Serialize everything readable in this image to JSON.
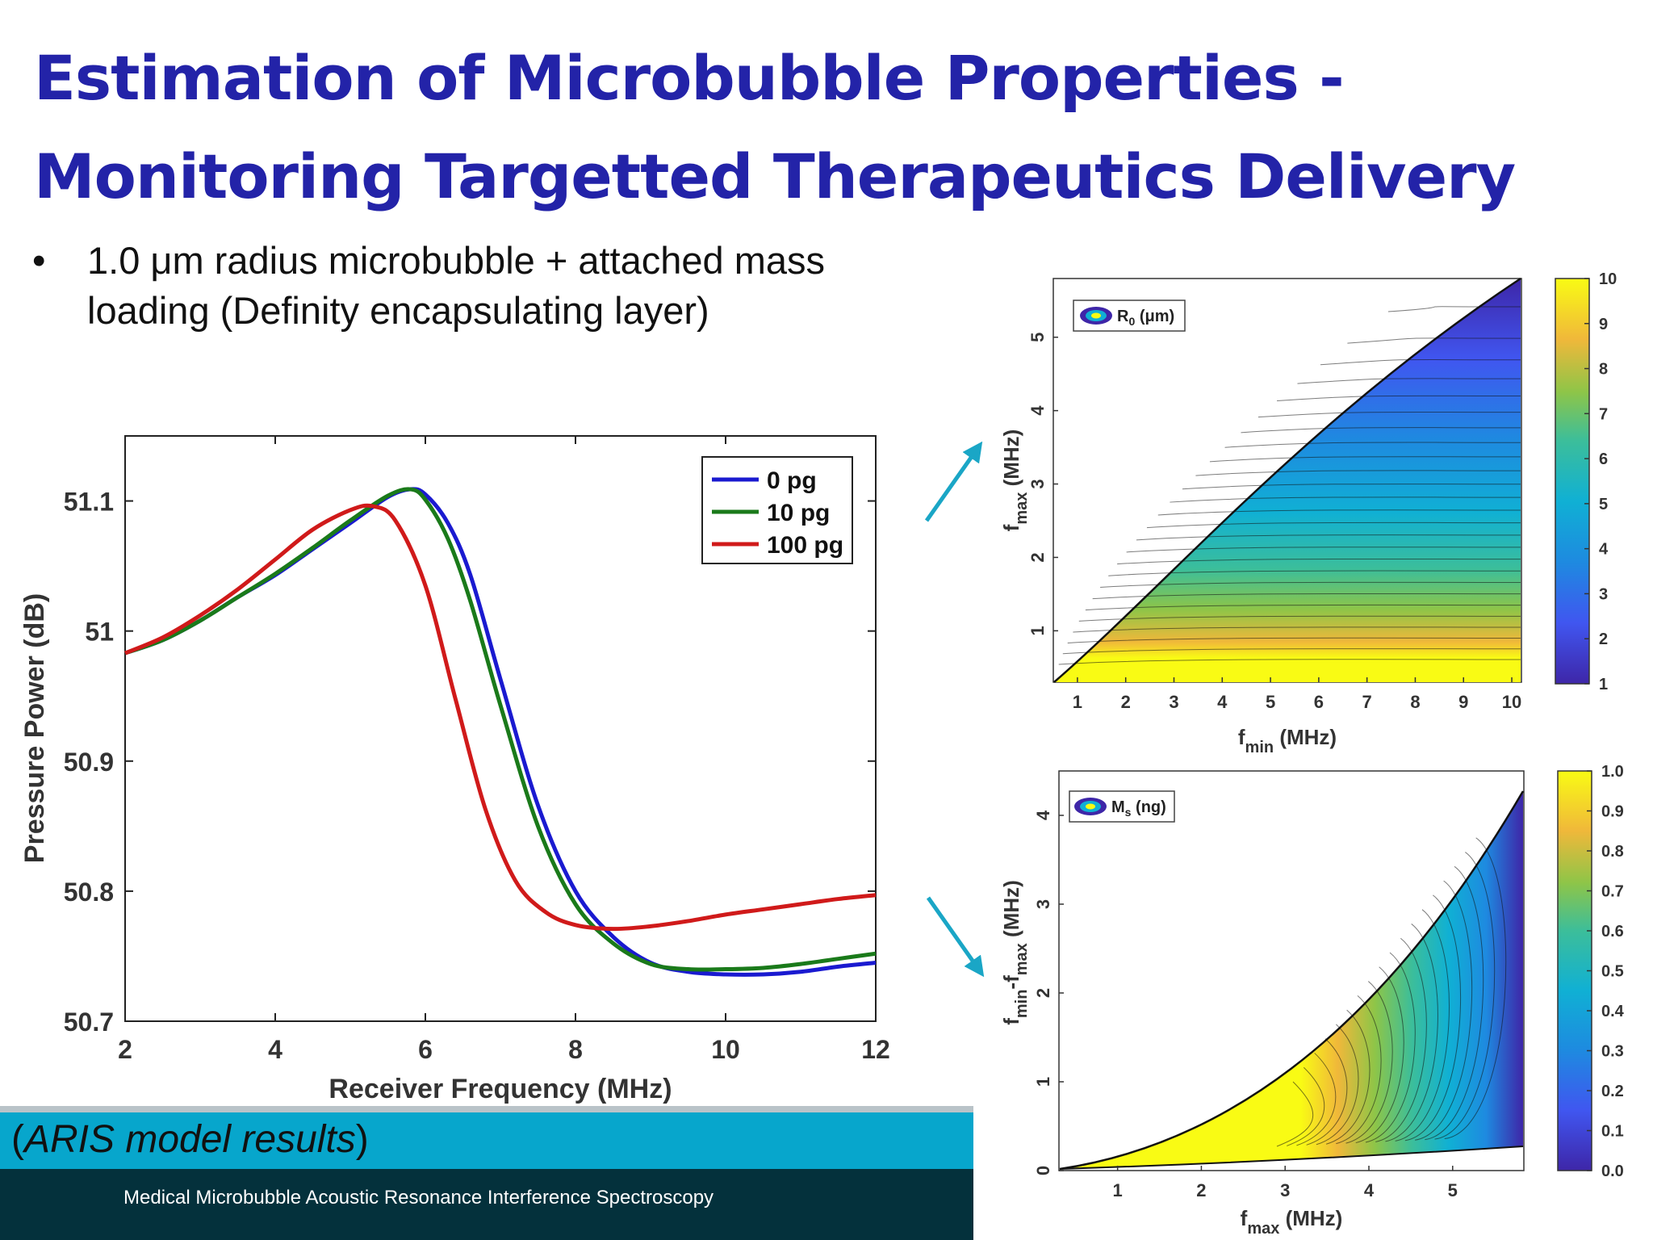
{
  "slide": {
    "title_line1": "Estimation of Microbubble Properties  -",
    "title_line2": "Monitoring Targetted Therapeutics Delivery",
    "bullet_symbol": "•",
    "bullet_line1": "1.0 μm radius microbubble + attached mass",
    "bullet_line2": "loading (Definity encapsulating layer)",
    "caption": "(ARIS model results)",
    "footer": "Medical Microbubble Acoustic Resonance Interference Spectroscopy",
    "colors": {
      "title": "#2323a8",
      "band": "#07a6cc",
      "footer_bg": "#04313c",
      "arrow": "#1aa6c6"
    }
  },
  "chart_data": [
    {
      "type": "line",
      "xlabel": "Receiver Frequency (MHz)",
      "ylabel": "Pressure Power (dB)",
      "xlim": [
        2,
        12
      ],
      "ylim": [
        50.7,
        51.15
      ],
      "xticks": [
        "2",
        "4",
        "6",
        "8",
        "10",
        "12"
      ],
      "yticks": [
        "50.7",
        "50.8",
        "50.9",
        "51",
        "51.1"
      ],
      "legend_position": "top-right",
      "series": [
        {
          "name": "0 pg",
          "color": "#1a1ad0",
          "x": [
            2,
            2.5,
            3,
            3.5,
            4,
            4.5,
            5,
            5.5,
            5.8,
            6,
            6.3,
            6.6,
            7,
            7.5,
            8,
            8.5,
            9,
            9.5,
            10,
            10.5,
            11,
            11.5,
            12
          ],
          "y": [
            50.983,
            50.993,
            51.008,
            51.026,
            51.043,
            51.063,
            51.083,
            51.103,
            51.109,
            51.105,
            51.083,
            51.043,
            50.963,
            50.866,
            50.8,
            50.765,
            50.745,
            50.738,
            50.736,
            50.736,
            50.738,
            50.742,
            50.745
          ]
        },
        {
          "name": "10 pg",
          "color": "#1a7a1a",
          "x": [
            2,
            2.5,
            3,
            3.5,
            4,
            4.5,
            5,
            5.5,
            5.8,
            6,
            6.3,
            6.6,
            7,
            7.5,
            8,
            8.5,
            9,
            9.5,
            10,
            10.5,
            11,
            11.5,
            12
          ],
          "y": [
            50.983,
            50.993,
            51.008,
            51.026,
            51.044,
            51.064,
            51.085,
            51.104,
            51.109,
            51.101,
            51.071,
            51.023,
            50.943,
            50.85,
            50.79,
            50.76,
            50.744,
            50.74,
            50.74,
            50.741,
            50.744,
            50.748,
            50.752
          ]
        },
        {
          "name": "100 pg",
          "color": "#d01a1a",
          "x": [
            2,
            2.5,
            3,
            3.5,
            4,
            4.5,
            5,
            5.3,
            5.6,
            6,
            6.4,
            6.8,
            7.2,
            7.6,
            8,
            8.5,
            9,
            9.5,
            10,
            10.5,
            11,
            11.5,
            12
          ],
          "y": [
            50.983,
            50.995,
            51.012,
            51.032,
            51.055,
            51.078,
            51.093,
            51.096,
            51.085,
            51.035,
            50.948,
            50.863,
            50.808,
            50.784,
            50.774,
            50.771,
            50.773,
            50.777,
            50.782,
            50.786,
            50.79,
            50.794,
            50.797
          ]
        }
      ]
    },
    {
      "type": "heatmap",
      "xlabel_main": "f",
      "xlabel_sub": "min",
      "xlabel_unit": "(MHz)",
      "ylabel_main": "f",
      "ylabel_sub": "max",
      "ylabel_unit": "(MHz)",
      "xlim": [
        0.5,
        10.2
      ],
      "ylim": [
        0.3,
        5.8
      ],
      "xticks": [
        "1",
        "2",
        "3",
        "4",
        "5",
        "6",
        "7",
        "8",
        "9",
        "10"
      ],
      "yticks": [
        "1",
        "2",
        "3",
        "4",
        "5"
      ],
      "legend_main": "R",
      "legend_sub": "0",
      "legend_unit": "(μm)",
      "legend_position": "top-left",
      "colorbar_range": [
        1,
        10
      ],
      "colorbar_ticks": [
        "1",
        "2",
        "3",
        "4",
        "5",
        "6",
        "7",
        "8",
        "9",
        "10"
      ]
    },
    {
      "type": "heatmap",
      "xlabel_main": "f",
      "xlabel_sub": "max",
      "xlabel_unit": "(MHz)",
      "ylabel_main": "f",
      "ylabel_sub1": "min",
      "ylabel_mid": "-f",
      "ylabel_sub2": "max",
      "ylabel_unit": "(MHz)",
      "xlim": [
        0.3,
        5.85
      ],
      "ylim": [
        0,
        4.5
      ],
      "xticks": [
        "1",
        "2",
        "3",
        "4",
        "5"
      ],
      "yticks": [
        "0",
        "1",
        "2",
        "3",
        "4"
      ],
      "legend_main": "M",
      "legend_sub": "s",
      "legend_unit": "(ng)",
      "legend_position": "top-left",
      "colorbar_range": [
        0,
        1
      ],
      "colorbar_ticks": [
        "0.0",
        "0.1",
        "0.2",
        "0.3",
        "0.4",
        "0.5",
        "0.6",
        "0.7",
        "0.8",
        "0.9",
        "1.0"
      ]
    }
  ]
}
